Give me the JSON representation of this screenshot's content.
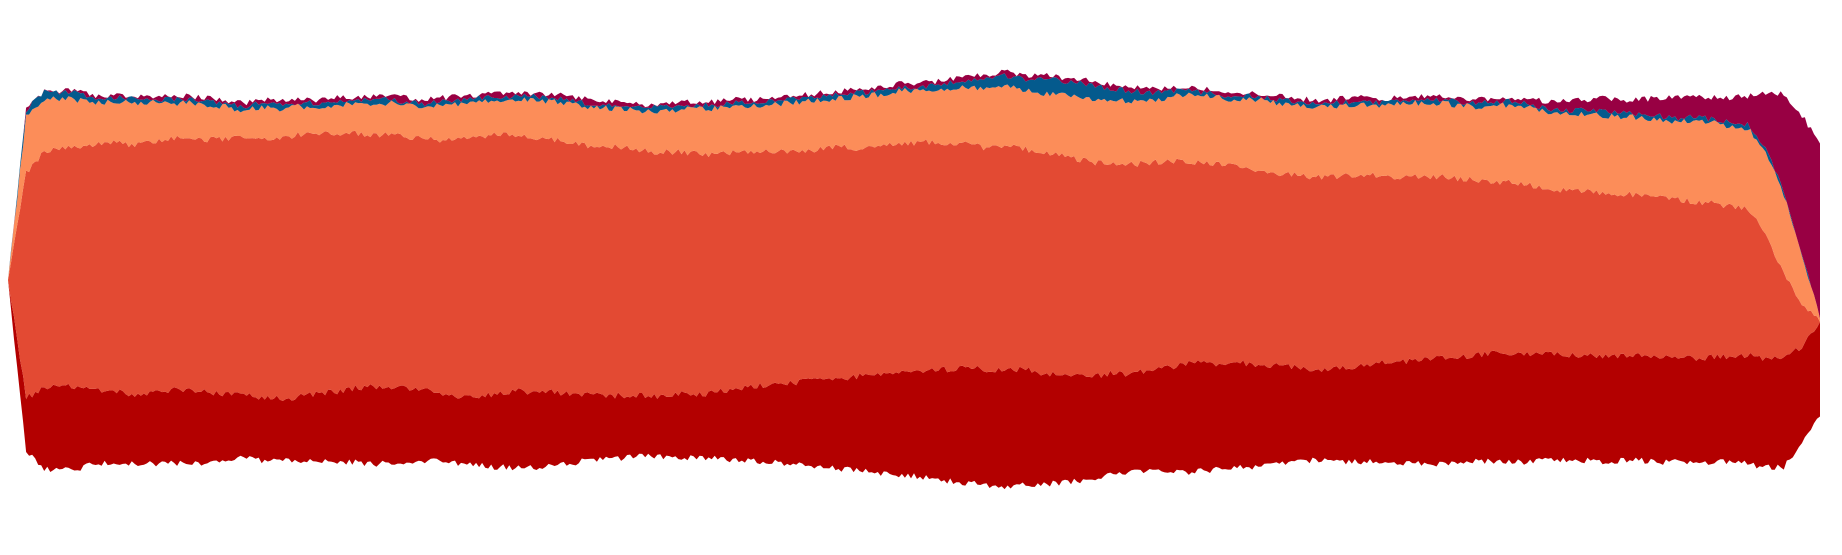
{
  "chart_data": {
    "type": "area",
    "subtype": "streamgraph",
    "baseline": "wiggle",
    "grid": false,
    "legend": "none",
    "axes_visible": false,
    "x": [
      0,
      1,
      2,
      3,
      4,
      5,
      6,
      7,
      8,
      9,
      10,
      11,
      12,
      13,
      14,
      15,
      16,
      17,
      18,
      19,
      20,
      21,
      22,
      23,
      24,
      25,
      26,
      27,
      28,
      29,
      30,
      31,
      32,
      33,
      34,
      35,
      36,
      37,
      38,
      39,
      40,
      41,
      42,
      43,
      44,
      45,
      46,
      47,
      48,
      49,
      50,
      51,
      52,
      53,
      54,
      55,
      56,
      57,
      58,
      59,
      60,
      61,
      62,
      63,
      64,
      65,
      66,
      67,
      68,
      69,
      70,
      71,
      72,
      73,
      74,
      75,
      76,
      77,
      78,
      79,
      80,
      81,
      82,
      83,
      84,
      85,
      86,
      87,
      88,
      89,
      90,
      91,
      92,
      93,
      94,
      95,
      96,
      97,
      98,
      99,
      100
    ],
    "series": [
      {
        "color": "#B30000",
        "values": [
          0.0,
          15,
          23,
          24,
          23,
          21,
          21,
          19,
          20,
          21,
          21,
          20,
          19,
          18,
          18,
          17,
          18,
          19,
          20,
          21,
          22,
          22,
          21,
          20,
          19,
          19,
          20,
          21,
          22,
          21,
          21,
          20,
          19,
          18,
          18,
          17,
          17,
          18,
          18,
          19,
          20,
          21,
          22,
          23,
          24,
          25,
          26,
          27,
          28,
          29,
          30,
          31,
          32,
          33,
          33,
          34,
          33,
          32,
          31,
          30,
          29,
          29,
          28,
          29,
          30,
          31,
          31,
          30,
          30,
          29,
          28,
          27,
          26,
          26,
          27,
          28,
          28,
          29,
          30,
          30,
          30,
          30,
          31,
          31,
          31,
          30,
          30,
          30,
          30,
          30,
          30,
          30,
          30,
          30,
          30,
          30,
          31,
          31,
          31,
          28,
          27
        ]
      },
      {
        "color": "#E34A33",
        "values": [
          0.0,
          64,
          68,
          68,
          69,
          70,
          71,
          72,
          72,
          72,
          72,
          72,
          73,
          73,
          74,
          74,
          75,
          74,
          74,
          73,
          72,
          72,
          72,
          72,
          73,
          74,
          74,
          74,
          73,
          73,
          72,
          72,
          71,
          71,
          71,
          70,
          70,
          69,
          69,
          68,
          68,
          67,
          67,
          66,
          66,
          66,
          66,
          65,
          65,
          66,
          65,
          65,
          64,
          64,
          63,
          64,
          63,
          63,
          63,
          62,
          61,
          60,
          60,
          59,
          59,
          58,
          57,
          57,
          56,
          56,
          55,
          55,
          55,
          55,
          55,
          54,
          53,
          53,
          52,
          52,
          51,
          50,
          49,
          49,
          48,
          47,
          47,
          47,
          47,
          46,
          46,
          46,
          45,
          45,
          44,
          43,
          42,
          36,
          24,
          12,
          0
        ]
      },
      {
        "color": "#FC8D59",
        "values": [
          0.0,
          16,
          15,
          14,
          13,
          12,
          12,
          12,
          11,
          10,
          10,
          10,
          9,
          8,
          9,
          9,
          8,
          8,
          8,
          8,
          9,
          9,
          9,
          9,
          10,
          10,
          10,
          10,
          10,
          11,
          11,
          11,
          11,
          11,
          11,
          11,
          12,
          12,
          13,
          13,
          13,
          13,
          13,
          14,
          14,
          14,
          14,
          15,
          15,
          15,
          15,
          15,
          16,
          16,
          17,
          17,
          17,
          17,
          17,
          18,
          18,
          18,
          18,
          18,
          18,
          19,
          19,
          19,
          19,
          20,
          20,
          20,
          20,
          20,
          20,
          20,
          20,
          21,
          21,
          21,
          21,
          21,
          22,
          22,
          22,
          22,
          22,
          22,
          22,
          22,
          22,
          22,
          22,
          23,
          23,
          23,
          23,
          23,
          23,
          14,
          1
        ]
      },
      {
        "color": "#045A8D",
        "values": [
          0.0,
          2,
          2,
          2,
          2,
          1,
          1,
          1,
          1,
          1,
          1,
          1,
          1,
          1,
          1,
          1,
          1,
          1,
          1,
          1,
          1,
          1,
          1,
          1,
          1,
          1,
          1,
          1,
          1,
          1,
          1,
          1,
          1,
          1,
          1,
          1,
          1,
          1,
          1,
          1,
          1,
          1,
          1,
          1,
          1,
          1,
          1,
          1,
          1,
          1,
          1,
          1,
          2,
          2,
          3,
          3,
          3,
          4,
          4,
          4,
          4,
          3,
          3,
          2,
          2,
          1,
          1,
          1,
          1,
          1,
          1,
          1,
          1,
          1,
          1,
          1,
          1,
          1,
          1,
          1,
          1,
          1,
          1,
          1,
          1,
          1,
          1,
          1,
          1,
          1,
          1,
          1,
          1,
          1,
          1,
          1,
          1,
          1,
          1,
          0,
          0
        ]
      },
      {
        "color": "#980043",
        "values": [
          0.0,
          0.1,
          0.2,
          0.3,
          0.4,
          0.5,
          0.6,
          0.7,
          0.8,
          0.9,
          1.0,
          1.0,
          1.0,
          1.0,
          1.0,
          1.0,
          1.0,
          1.0,
          1.0,
          1.0,
          1.0,
          1.0,
          1.0,
          1.0,
          1.0,
          1.0,
          1.0,
          1.0,
          1.0,
          1.0,
          1.0,
          1.0,
          1.0,
          1.0,
          1.0,
          1.0,
          1.0,
          1.0,
          1.0,
          1.0,
          1.0,
          1.0,
          1.0,
          1.0,
          1.0,
          1.0,
          1.0,
          1.0,
          1.0,
          1.0,
          1.0,
          1.0,
          1.0,
          1.0,
          1.0,
          1.0,
          1.0,
          1.0,
          1.0,
          1.0,
          1.0,
          1.0,
          1.0,
          1.0,
          1.0,
          1.0,
          1.0,
          1.0,
          1.0,
          1.0,
          1.0,
          1.0,
          1.0,
          1.0,
          1.0,
          1.0,
          1.0,
          1.0,
          1.0,
          1.0,
          1.0,
          1.0,
          1.0,
          1.0,
          2,
          2,
          3,
          3,
          4,
          4,
          4,
          5,
          6,
          6,
          6,
          7,
          8,
          16,
          28,
          40,
          50
        ]
      }
    ]
  }
}
